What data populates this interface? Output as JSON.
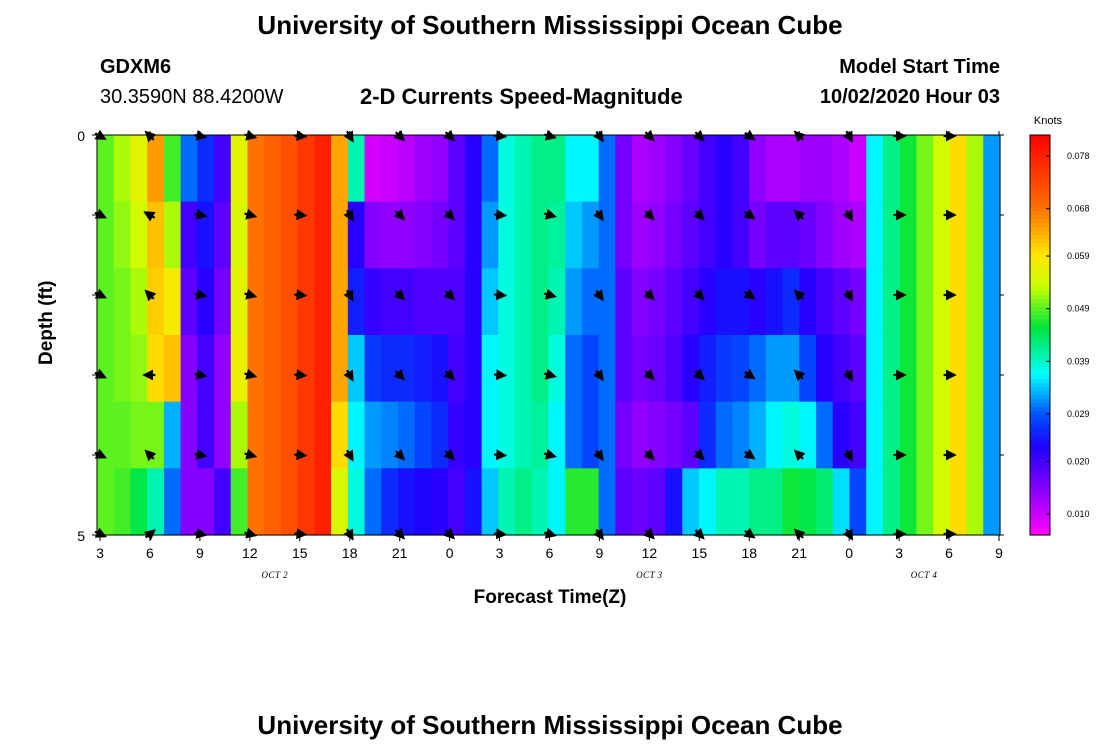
{
  "page": {
    "title": "University of Southern Mississippi Ocean Cube",
    "footer_title": "University of Southern Mississippi Ocean Cube",
    "station": "GDXM6",
    "coords": "30.3590N 88.4200W",
    "subtitle": "2-D Currents Speed-Magnitude",
    "start_label": "Model Start Time",
    "start_value": "10/02/2020 Hour 03"
  },
  "chart_data": {
    "type": "heatmap",
    "title": "2-D Currents Speed-Magnitude",
    "xlabel": "Forecast Time(Z)",
    "ylabel": "Depth (ft)",
    "ylim": [
      0,
      5
    ],
    "y_ticks": [
      "0",
      "5"
    ],
    "x_ticks": [
      "3",
      "6",
      "9",
      "12",
      "15",
      "18",
      "21",
      "0",
      "3",
      "6",
      "9",
      "12",
      "15",
      "18",
      "21",
      "0",
      "3",
      "6",
      "9"
    ],
    "x_tick_hours": [
      0,
      3,
      6,
      9,
      12,
      15,
      18,
      21,
      24,
      27,
      30,
      33,
      36,
      39,
      42,
      45,
      48,
      51,
      54
    ],
    "x_range_hours": [
      0,
      54
    ],
    "date_labels": [
      {
        "label": "OCT 2",
        "hour": 10.5
      },
      {
        "label": "OCT 3",
        "hour": 33
      },
      {
        "label": "OCT 4",
        "hour": 49.5
      }
    ],
    "colorbar": {
      "title": "Knots",
      "range": [
        0.006,
        0.082
      ],
      "ticks": [
        0.01,
        0.02,
        0.029,
        0.039,
        0.049,
        0.059,
        0.068,
        0.078
      ],
      "tick_labels": [
        "0.010",
        "0.020",
        "0.029",
        "0.039",
        "0.049",
        "0.059",
        "0.068",
        "0.078"
      ]
    },
    "columns": [
      {
        "h": 0,
        "v": [
          0.049,
          0.049,
          0.049,
          0.049,
          0.049,
          0.049
        ]
      },
      {
        "h": 1,
        "v": [
          0.052,
          0.051,
          0.05,
          0.05,
          0.049,
          0.048
        ]
      },
      {
        "h": 2,
        "v": [
          0.056,
          0.054,
          0.052,
          0.051,
          0.05,
          0.045
        ]
      },
      {
        "h": 3,
        "v": [
          0.065,
          0.062,
          0.061,
          0.06,
          0.05,
          0.04
        ]
      },
      {
        "h": 4,
        "v": [
          0.048,
          0.052,
          0.058,
          0.062,
          0.033,
          0.03
        ]
      },
      {
        "h": 5,
        "v": [
          0.03,
          0.02,
          0.018,
          0.015,
          0.015,
          0.015
        ]
      },
      {
        "h": 6,
        "v": [
          0.026,
          0.024,
          0.022,
          0.02,
          0.02,
          0.015
        ]
      },
      {
        "h": 7,
        "v": [
          0.02,
          0.018,
          0.016,
          0.014,
          0.014,
          0.02
        ]
      },
      {
        "h": 8,
        "v": [
          0.056,
          0.055,
          0.056,
          0.057,
          0.052,
          0.048
        ]
      },
      {
        "h": 9,
        "v": [
          0.068,
          0.068,
          0.068,
          0.068,
          0.068,
          0.068
        ]
      },
      {
        "h": 10,
        "v": [
          0.07,
          0.07,
          0.07,
          0.07,
          0.07,
          0.07
        ]
      },
      {
        "h": 11,
        "v": [
          0.072,
          0.072,
          0.072,
          0.072,
          0.072,
          0.072
        ]
      },
      {
        "h": 12,
        "v": [
          0.075,
          0.075,
          0.075,
          0.075,
          0.075,
          0.075
        ]
      },
      {
        "h": 13,
        "v": [
          0.078,
          0.078,
          0.078,
          0.078,
          0.078,
          0.078
        ]
      },
      {
        "h": 14,
        "v": [
          0.064,
          0.064,
          0.064,
          0.064,
          0.06,
          0.055
        ]
      },
      {
        "h": 15,
        "v": [
          0.04,
          0.022,
          0.025,
          0.034,
          0.036,
          0.038
        ]
      },
      {
        "h": 16,
        "v": [
          0.009,
          0.015,
          0.021,
          0.027,
          0.032,
          0.03
        ]
      },
      {
        "h": 17,
        "v": [
          0.01,
          0.014,
          0.02,
          0.026,
          0.031,
          0.026
        ]
      },
      {
        "h": 18,
        "v": [
          0.011,
          0.014,
          0.02,
          0.026,
          0.03,
          0.024
        ]
      },
      {
        "h": 19,
        "v": [
          0.013,
          0.015,
          0.019,
          0.025,
          0.028,
          0.023
        ]
      },
      {
        "h": 20,
        "v": [
          0.014,
          0.016,
          0.019,
          0.024,
          0.026,
          0.022
        ]
      },
      {
        "h": 21,
        "v": [
          0.018,
          0.018,
          0.019,
          0.02,
          0.021,
          0.02
        ]
      },
      {
        "h": 22,
        "v": [
          0.022,
          0.022,
          0.022,
          0.022,
          0.022,
          0.024
        ]
      },
      {
        "h": 23,
        "v": [
          0.03,
          0.032,
          0.034,
          0.036,
          0.036,
          0.034
        ]
      },
      {
        "h": 24,
        "v": [
          0.038,
          0.038,
          0.038,
          0.038,
          0.038,
          0.04
        ]
      },
      {
        "h": 25,
        "v": [
          0.04,
          0.04,
          0.04,
          0.04,
          0.04,
          0.042
        ]
      },
      {
        "h": 26,
        "v": [
          0.042,
          0.042,
          0.042,
          0.042,
          0.041,
          0.04
        ]
      },
      {
        "h": 27,
        "v": [
          0.042,
          0.041,
          0.04,
          0.038,
          0.036,
          0.036
        ]
      },
      {
        "h": 28,
        "v": [
          0.036,
          0.034,
          0.032,
          0.03,
          0.03,
          0.047
        ]
      },
      {
        "h": 29,
        "v": [
          0.036,
          0.032,
          0.03,
          0.028,
          0.028,
          0.047
        ]
      },
      {
        "h": 30,
        "v": [
          0.03,
          0.03,
          0.03,
          0.03,
          0.03,
          0.03
        ]
      },
      {
        "h": 31,
        "v": [
          0.016,
          0.016,
          0.018,
          0.018,
          0.016,
          0.018
        ]
      },
      {
        "h": 32,
        "v": [
          0.012,
          0.013,
          0.015,
          0.016,
          0.014,
          0.017
        ]
      },
      {
        "h": 33,
        "v": [
          0.013,
          0.014,
          0.016,
          0.017,
          0.015,
          0.018
        ]
      },
      {
        "h": 34,
        "v": [
          0.015,
          0.016,
          0.018,
          0.019,
          0.016,
          0.024
        ]
      },
      {
        "h": 35,
        "v": [
          0.017,
          0.018,
          0.02,
          0.022,
          0.018,
          0.034
        ]
      },
      {
        "h": 36,
        "v": [
          0.02,
          0.02,
          0.022,
          0.025,
          0.026,
          0.036
        ]
      },
      {
        "h": 37,
        "v": [
          0.022,
          0.022,
          0.024,
          0.027,
          0.03,
          0.04
        ]
      },
      {
        "h": 38,
        "v": [
          0.02,
          0.02,
          0.024,
          0.028,
          0.031,
          0.04
        ]
      },
      {
        "h": 39,
        "v": [
          0.014,
          0.016,
          0.022,
          0.03,
          0.033,
          0.042
        ]
      },
      {
        "h": 40,
        "v": [
          0.012,
          0.018,
          0.024,
          0.032,
          0.036,
          0.042
        ]
      },
      {
        "h": 41,
        "v": [
          0.012,
          0.018,
          0.026,
          0.032,
          0.038,
          0.046
        ]
      },
      {
        "h": 42,
        "v": [
          0.013,
          0.017,
          0.022,
          0.028,
          0.036,
          0.045
        ]
      },
      {
        "h": 43,
        "v": [
          0.013,
          0.015,
          0.02,
          0.022,
          0.03,
          0.043
        ]
      },
      {
        "h": 44,
        "v": [
          0.012,
          0.013,
          0.018,
          0.02,
          0.022,
          0.035
        ]
      },
      {
        "h": 45,
        "v": [
          0.01,
          0.012,
          0.016,
          0.018,
          0.02,
          0.028
        ]
      },
      {
        "h": 46,
        "v": [
          0.036,
          0.036,
          0.036,
          0.036,
          0.036,
          0.036
        ]
      },
      {
        "h": 47,
        "v": [
          0.042,
          0.042,
          0.042,
          0.042,
          0.042,
          0.042
        ]
      },
      {
        "h": 48,
        "v": [
          0.046,
          0.046,
          0.046,
          0.046,
          0.046,
          0.046
        ]
      },
      {
        "h": 49,
        "v": [
          0.05,
          0.05,
          0.05,
          0.05,
          0.05,
          0.05
        ]
      },
      {
        "h": 50,
        "v": [
          0.054,
          0.054,
          0.054,
          0.054,
          0.054,
          0.054
        ]
      },
      {
        "h": 51,
        "v": [
          0.06,
          0.06,
          0.06,
          0.06,
          0.06,
          0.06
        ]
      },
      {
        "h": 52,
        "v": [
          0.052,
          0.052,
          0.052,
          0.052,
          0.052,
          0.052
        ]
      },
      {
        "h": 53,
        "v": [
          0.032,
          0.032,
          0.032,
          0.032,
          0.032,
          0.032
        ]
      }
    ],
    "vectors": {
      "hours": [
        0,
        3,
        6,
        9,
        12,
        15,
        18,
        21,
        24,
        27,
        30,
        33,
        36,
        39,
        42,
        45,
        48,
        51
      ],
      "depth_rows": [
        0,
        1,
        2,
        3,
        4,
        5
      ],
      "direction_deg_by_hour": [
        25,
        -135,
        10,
        15,
        5,
        60,
        45,
        45,
        5,
        15,
        55,
        45,
        45,
        35,
        -135,
        60,
        0,
        0
      ],
      "row_overrides": [
        {
          "hour": 3,
          "row": 5,
          "deg": -40
        },
        {
          "hour": 3,
          "row": 1,
          "deg": -150
        },
        {
          "hour": 3,
          "row": 3,
          "deg": 180
        },
        {
          "hour": 0,
          "row": 0,
          "deg": 30
        }
      ]
    }
  }
}
